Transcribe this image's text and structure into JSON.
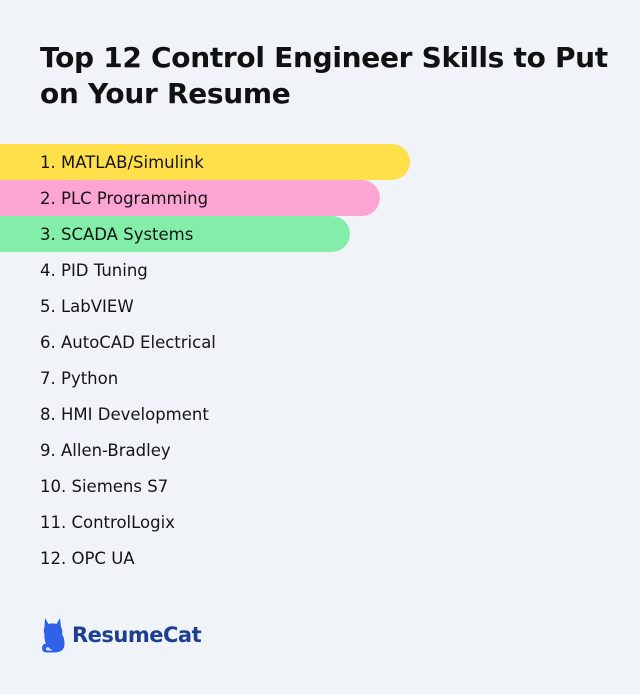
{
  "title": "Top 12 Control Engineer Skills to Put on Your Resume",
  "skills": [
    {
      "label": "1. MATLAB/Simulink",
      "highlight": "#ffe04b"
    },
    {
      "label": "2. PLC Programming",
      "highlight": "#fca5d3"
    },
    {
      "label": "3. SCADA Systems",
      "highlight": "#83eea9"
    },
    {
      "label": "4. PID Tuning",
      "highlight": ""
    },
    {
      "label": "5. LabVIEW",
      "highlight": ""
    },
    {
      "label": "6. AutoCAD Electrical",
      "highlight": ""
    },
    {
      "label": "7. Python",
      "highlight": ""
    },
    {
      "label": "8. HMI Development",
      "highlight": ""
    },
    {
      "label": "9. Allen-Bradley",
      "highlight": ""
    },
    {
      "label": "10. Siemens S7",
      "highlight": ""
    },
    {
      "label": "11. ControlLogix",
      "highlight": ""
    },
    {
      "label": "12. OPC UA",
      "highlight": ""
    }
  ],
  "brand": {
    "name": "ResumeCat",
    "icon": "cat-icon",
    "color": "#1d3f8f",
    "icon_color": "#2f62e8"
  },
  "background": "#f0f4f9"
}
